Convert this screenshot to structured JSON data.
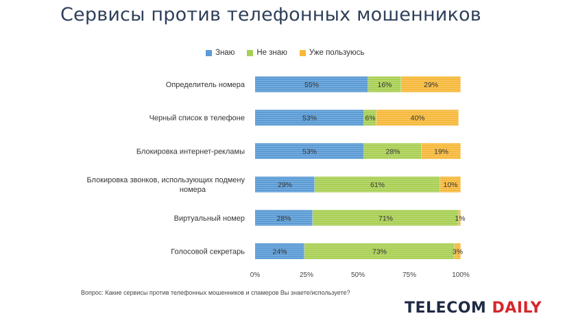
{
  "title": "Сервисы против телефонных мошенников",
  "footnote": "Вопрос: Какие сервисы против телефонных мошенников и спамеров Вы знаете/используете?",
  "brand": {
    "part1": "TELECOM",
    "part2": "DAILY"
  },
  "chart_data": {
    "type": "bar",
    "orientation": "horizontal",
    "stacked": true,
    "categories": [
      "Определитель номера",
      "Черный список в телефоне",
      "Блокировка интернет-рекламы",
      "Блокировка звонков, использующих подмену номера",
      "Виртуальный номер",
      "Голосовой секретарь"
    ],
    "series": [
      {
        "name": "Знаю",
        "color": "#5b9bd5",
        "values": [
          55,
          53,
          53,
          29,
          28,
          24
        ]
      },
      {
        "name": "Не знаю",
        "color": "#a9cf54",
        "values": [
          16,
          6,
          28,
          61,
          71,
          73
        ]
      },
      {
        "name": "Уже пользуюсь",
        "color": "#f6b93b",
        "values": [
          29,
          40,
          19,
          10,
          1,
          3
        ]
      }
    ],
    "xticks": [
      "0%",
      "25%",
      "50%",
      "75%",
      "100%"
    ],
    "xlim": [
      0,
      100
    ],
    "legend_position": "top",
    "grid": false
  }
}
